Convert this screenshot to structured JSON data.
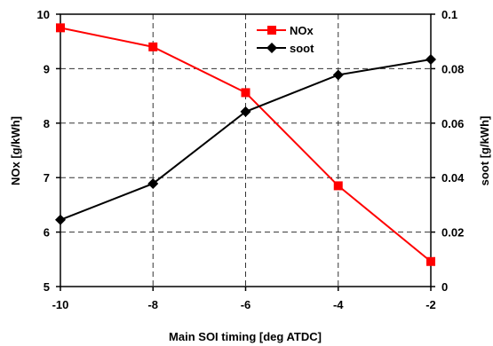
{
  "chart_data": {
    "type": "line",
    "x": [
      -10,
      -8,
      -6,
      -4,
      -2
    ],
    "xlim": [
      -10,
      -2
    ],
    "x_ticks": [
      "-10",
      "-8",
      "-6",
      "-4",
      "-2"
    ],
    "xlabel": "Main SOI timing [deg ATDC]",
    "ylabel_left": "NOx [g/kWh]",
    "ylim_left": [
      5,
      10
    ],
    "y_ticks_left": [
      "5",
      "6",
      "7",
      "8",
      "9",
      "10"
    ],
    "ylabel_right": "soot [g/kWh]",
    "ylim_right": [
      0,
      0.1
    ],
    "y_ticks_right": [
      "0",
      "0.02",
      "0.04",
      "0.06",
      "0.08",
      "0.1"
    ],
    "grid": "dashed",
    "legend_position": "top-right",
    "series": [
      {
        "name": "NOx",
        "axis": "left",
        "color": "#ff0000",
        "marker": "square",
        "values": [
          9.75,
          9.4,
          8.56,
          6.85,
          5.46
        ]
      },
      {
        "name": "soot",
        "axis": "right",
        "color": "#000000",
        "marker": "diamond",
        "values": [
          0.0245,
          0.0378,
          0.0642,
          0.0777,
          0.0834
        ]
      }
    ]
  }
}
